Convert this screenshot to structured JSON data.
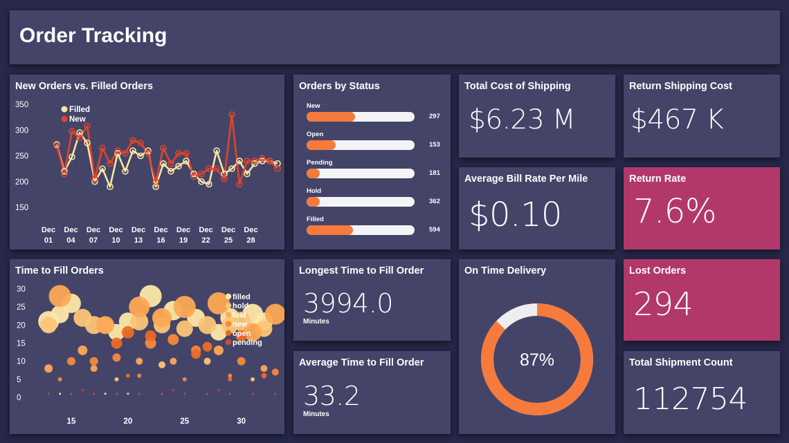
{
  "header": {
    "title": "Order Tracking"
  },
  "colors": {
    "background": "#27284a",
    "panel": "#444468",
    "accent": "#f57a3c",
    "pink": "#b2386c",
    "filled_line": "#f7e6a5",
    "new_line": "#e0442b"
  },
  "orders_chart": {
    "title": "New Orders vs. Filled Orders",
    "legend": [
      {
        "label": "Filled"
      },
      {
        "label": "New"
      }
    ],
    "yticks": [
      "350",
      "300",
      "250",
      "200",
      "150"
    ],
    "xticks": [
      {
        "day": "Dec",
        "num": "01"
      },
      {
        "day": "Dec",
        "num": "04"
      },
      {
        "day": "Dec",
        "num": "07"
      },
      {
        "day": "Dec",
        "num": "10"
      },
      {
        "day": "Dec",
        "num": "13"
      },
      {
        "day": "Dec",
        "num": "16"
      },
      {
        "day": "Dec",
        "num": "19"
      },
      {
        "day": "Dec",
        "num": "22"
      },
      {
        "day": "Dec",
        "num": "25"
      },
      {
        "day": "Dec",
        "num": "28"
      }
    ]
  },
  "chart_data": [
    {
      "type": "line",
      "title": "New Orders vs. Filled Orders",
      "x": [
        1,
        2,
        3,
        4,
        5,
        6,
        7,
        8,
        9,
        10,
        11,
        12,
        13,
        14,
        15,
        16,
        17,
        18,
        19,
        20,
        21,
        22,
        23,
        24,
        25,
        26,
        27,
        28,
        29,
        30
      ],
      "xtick_labels": [
        "Dec 01",
        "Dec 04",
        "Dec 07",
        "Dec 10",
        "Dec 13",
        "Dec 16",
        "Dec 19",
        "Dec 22",
        "Dec 25",
        "Dec 28"
      ],
      "ylim": [
        150,
        350
      ],
      "series": [
        {
          "name": "Filled",
          "values": [
            272,
            220,
            248,
            295,
            275,
            200,
            225,
            190,
            255,
            220,
            260,
            250,
            260,
            190,
            235,
            220,
            230,
            240,
            215,
            200,
            195,
            260,
            215,
            225,
            240,
            215,
            235,
            240,
            240,
            235
          ]
        },
        {
          "name": "New",
          "values": [
            270,
            215,
            298,
            285,
            308,
            205,
            265,
            235,
            260,
            255,
            280,
            275,
            255,
            200,
            265,
            235,
            255,
            255,
            210,
            215,
            225,
            225,
            205,
            330,
            195,
            240,
            240,
            245,
            240,
            225
          ]
        }
      ],
      "legend": "top-left"
    },
    {
      "type": "bar",
      "title": "Orders by Status",
      "categories": [
        "New",
        "Open",
        "Pending",
        "Hold",
        "Filled"
      ],
      "values": [
        297,
        153,
        181,
        362,
        594
      ],
      "fill_fractions": [
        0.45,
        0.27,
        0.1,
        0.1,
        0.43
      ]
    },
    {
      "type": "scatter",
      "title": "Time to Fill Orders",
      "xticks": [
        "15",
        "20",
        "25",
        "30"
      ],
      "yticks": [
        "30",
        "25",
        "20",
        "15",
        "10",
        "5",
        "0"
      ],
      "xlim": [
        12.5,
        33.5
      ],
      "ylim": [
        0,
        30
      ],
      "series": [
        {
          "name": "filled",
          "color": "#fde8a6",
          "points": [
            [
              13,
              21,
              15
            ],
            [
              14,
              23,
              13
            ],
            [
              15,
              26,
              14
            ],
            [
              18,
              20,
              11
            ],
            [
              19,
              18,
              12
            ],
            [
              20,
              21,
              13
            ],
            [
              22,
              28,
              16
            ],
            [
              24,
              24,
              14
            ],
            [
              26,
              22,
              13
            ],
            [
              28,
              18,
              12
            ],
            [
              29,
              22,
              14
            ],
            [
              31,
              23,
              15
            ],
            [
              32,
              21,
              13
            ],
            [
              14,
              1,
              1.5
            ],
            [
              18,
              1,
              1.5
            ],
            [
              20,
              1,
              1.5
            ]
          ]
        },
        {
          "name": "hold",
          "color": "#fcc577",
          "points": [
            [
              13,
              20,
              12
            ],
            [
              16,
              22,
              13
            ],
            [
              17,
              20,
              13
            ],
            [
              21,
              21,
              13
            ],
            [
              23,
              20,
              12
            ],
            [
              25,
              19,
              12
            ],
            [
              27,
              20,
              13
            ],
            [
              29,
              20,
              12
            ],
            [
              30,
              21,
              14
            ],
            [
              32,
              19,
              12
            ],
            [
              19,
              5,
              3
            ],
            [
              23,
              9,
              5
            ],
            [
              27,
              10,
              5
            ],
            [
              31,
              5,
              3
            ]
          ]
        },
        {
          "name": "lost",
          "color": "#fca954",
          "points": [
            [
              14,
              28,
              16
            ],
            [
              18,
              20,
              13
            ],
            [
              21,
              25,
              15
            ],
            [
              23,
              22,
              14
            ],
            [
              25,
              25,
              16
            ],
            [
              28,
              26,
              16
            ],
            [
              31,
              18,
              13
            ],
            [
              33,
              23,
              15
            ],
            [
              13,
              8,
              6
            ],
            [
              16,
              13,
              7
            ],
            [
              17,
              8,
              5
            ],
            [
              21,
              10,
              5
            ],
            [
              24,
              10,
              5
            ],
            [
              28,
              13,
              7
            ],
            [
              32,
              8,
              5
            ]
          ]
        },
        {
          "name": "new",
          "color": "#f58a3c",
          "points": [
            [
              15,
              10,
              6
            ],
            [
              17,
              10,
              6
            ],
            [
              19,
              11,
              6
            ],
            [
              22,
              15,
              8
            ],
            [
              24,
              16,
              8
            ],
            [
              26,
              13,
              7
            ],
            [
              30,
              10,
              6
            ],
            [
              33,
              7,
              5
            ],
            [
              14,
              5,
              3
            ],
            [
              21,
              6,
              3
            ],
            [
              25,
              5,
              3
            ],
            [
              29,
              6,
              3
            ]
          ]
        },
        {
          "name": "open",
          "color": "#ee6a28",
          "points": [
            [
              19,
              15,
              8
            ],
            [
              20,
              18,
              9
            ],
            [
              22,
              17,
              8
            ],
            [
              26,
              12,
              7
            ],
            [
              27,
              14,
              7
            ],
            [
              30,
              17,
              8
            ],
            [
              32,
              6,
              4
            ],
            [
              20,
              6,
              3
            ],
            [
              29,
              5,
              3
            ]
          ]
        },
        {
          "name": "pending",
          "color": "#d84a26",
          "points": [
            [
              13,
              1,
              1.5
            ],
            [
              15,
              1,
              1.5
            ],
            [
              17,
              1,
              1.5
            ],
            [
              19,
              1,
              1.5
            ],
            [
              21,
              1,
              1.5
            ],
            [
              23,
              1,
              1.5
            ],
            [
              25,
              1,
              1.5
            ],
            [
              27,
              1,
              1.5
            ],
            [
              29,
              1,
              1.5
            ],
            [
              31,
              1,
              1.5
            ],
            [
              33,
              1,
              1.5
            ],
            [
              16,
              2,
              1.5
            ],
            [
              24,
              2,
              1.5
            ],
            [
              28,
              2,
              1.5
            ]
          ]
        }
      ],
      "legend": "top-right"
    },
    {
      "type": "pie",
      "title": "On Time Delivery",
      "values": [
        87,
        13
      ],
      "center_label": "87%"
    }
  ],
  "status": {
    "title": "Orders by Status",
    "items": [
      {
        "label": "New",
        "value": "297",
        "fill": 0.45
      },
      {
        "label": "Open",
        "value": "153",
        "fill": 0.27
      },
      {
        "label": "Pending",
        "value": "181",
        "fill": 0.1
      },
      {
        "label": "Hold",
        "value": "362",
        "fill": 0.1
      },
      {
        "label": "Filled",
        "value": "594",
        "fill": 0.43
      }
    ]
  },
  "kpis": {
    "total_cost": {
      "title": "Total Cost of Shipping",
      "value": "$6.23 M"
    },
    "return_cost": {
      "title": "Return Shipping Cost",
      "value": "$467 K"
    },
    "avg_bill": {
      "title": "Average Bill Rate Per Mile",
      "value": "$0.10"
    },
    "return_rate": {
      "title": "Return Rate",
      "value": "7.6%"
    },
    "longest_fill": {
      "title": "Longest Time to Fill Order",
      "value": "3994.0",
      "unit": "Minutes"
    },
    "avg_fill": {
      "title": "Average Time to Fill Order",
      "value": "33.2",
      "unit": "Minutes"
    },
    "lost_orders": {
      "title": "Lost Orders",
      "value": "294"
    },
    "shipment_count": {
      "title": "Total Shipment Count",
      "value": "112754"
    }
  },
  "fill_chart": {
    "title": "Time to Fill Orders",
    "yticks": [
      "30",
      "25",
      "20",
      "15",
      "10",
      "5",
      "0"
    ],
    "xticks": [
      "15",
      "20",
      "25",
      "30"
    ],
    "legend": [
      "filled",
      "hold",
      "lost",
      "new",
      "open",
      "pending"
    ]
  },
  "on_time": {
    "title": "On Time Delivery",
    "value": "87%",
    "percent": 87
  }
}
